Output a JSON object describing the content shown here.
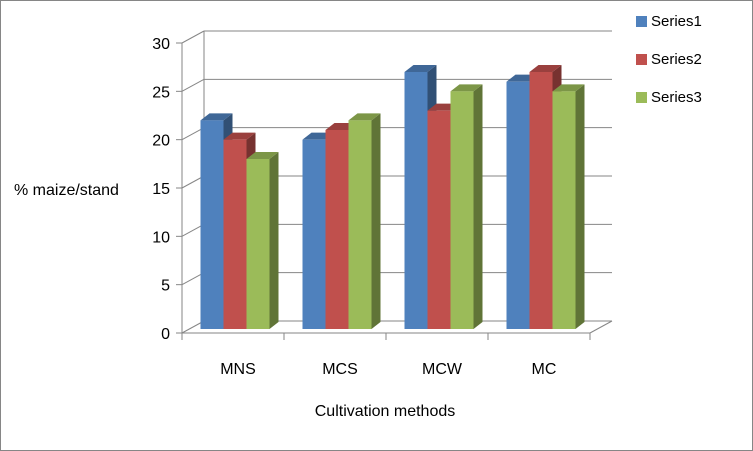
{
  "chart_data": {
    "type": "bar",
    "categories": [
      "MNS",
      "MCS",
      "MCW",
      "MC"
    ],
    "series": [
      {
        "name": "Series1",
        "values": [
          22,
          20,
          27,
          26
        ],
        "color": "#4F81BD"
      },
      {
        "name": "Series2",
        "values": [
          20,
          21,
          23,
          27
        ],
        "color": "#C0504D"
      },
      {
        "name": "Series3",
        "values": [
          18,
          22,
          25,
          25
        ],
        "color": "#9BBB59"
      }
    ],
    "title": "",
    "xlabel": "Cultivation methods",
    "ylabel": "% maize/stand",
    "ylim": [
      0,
      30
    ],
    "yticks": [
      "0",
      "5",
      "10",
      "15",
      "20",
      "25",
      "30"
    ],
    "grid": true,
    "legend_position": "right"
  }
}
